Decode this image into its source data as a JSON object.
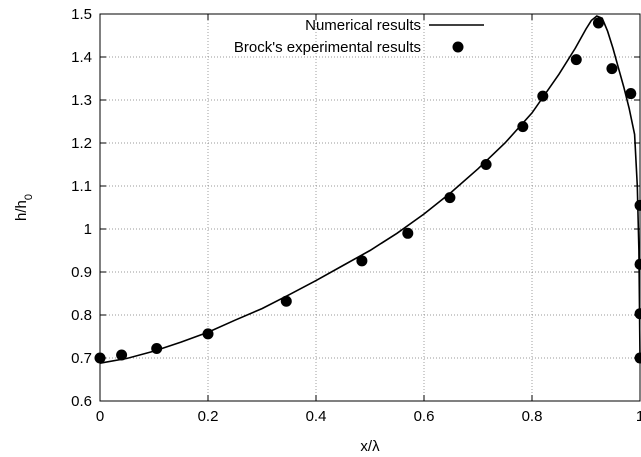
{
  "chart_data": {
    "type": "scatter",
    "xlabel": "x/λ",
    "ylabel_main": "h/h",
    "ylabel_sub": "0",
    "xlim": [
      0,
      1
    ],
    "ylim": [
      0.6,
      1.5
    ],
    "x_ticks": [
      0,
      0.2,
      0.4,
      0.6,
      0.8,
      1
    ],
    "x_tick_labels": [
      "0",
      "0.2",
      "0.4",
      "0.6",
      "0.8",
      "1"
    ],
    "y_ticks": [
      0.6,
      0.7,
      0.8,
      0.9,
      1.0,
      1.1,
      1.2,
      1.3,
      1.4,
      1.5
    ],
    "y_tick_labels": [
      "0.6",
      "0.7",
      "0.8",
      "0.9",
      "1",
      "1.1",
      "1.2",
      "1.3",
      "1.4",
      "1.5"
    ],
    "grid": true,
    "legend_position": "top-right",
    "series": [
      {
        "name": "Numerical results",
        "style": "line",
        "color": "#000000",
        "x": [
          0,
          0.05,
          0.1,
          0.15,
          0.2,
          0.25,
          0.3,
          0.35,
          0.4,
          0.45,
          0.5,
          0.55,
          0.6,
          0.65,
          0.7,
          0.75,
          0.8,
          0.85,
          0.88,
          0.9,
          0.91,
          0.92,
          0.93,
          0.94,
          0.95,
          0.96,
          0.97,
          0.98,
          0.99,
          0.995,
          0.998,
          1.0
        ],
        "y": [
          0.688,
          0.699,
          0.716,
          0.737,
          0.76,
          0.788,
          0.815,
          0.847,
          0.88,
          0.915,
          0.95,
          0.99,
          1.035,
          1.085,
          1.14,
          1.2,
          1.27,
          1.36,
          1.42,
          1.465,
          1.485,
          1.495,
          1.49,
          1.46,
          1.42,
          1.375,
          1.33,
          1.28,
          1.22,
          1.1,
          0.95,
          0.7
        ]
      },
      {
        "name": "Brock's experimental results",
        "style": "points",
        "color": "#000000",
        "x": [
          0.0,
          0.04,
          0.105,
          0.2,
          0.345,
          0.485,
          0.57,
          0.648,
          0.715,
          0.783,
          0.82,
          0.882,
          0.923,
          0.948,
          0.983,
          1.0,
          1.0,
          1.0,
          1.0
        ],
        "y": [
          0.7,
          0.707,
          0.722,
          0.756,
          0.832,
          0.926,
          0.99,
          1.073,
          1.15,
          1.238,
          1.309,
          1.394,
          1.479,
          1.373,
          1.315,
          1.055,
          0.918,
          0.803,
          0.7
        ]
      }
    ]
  }
}
